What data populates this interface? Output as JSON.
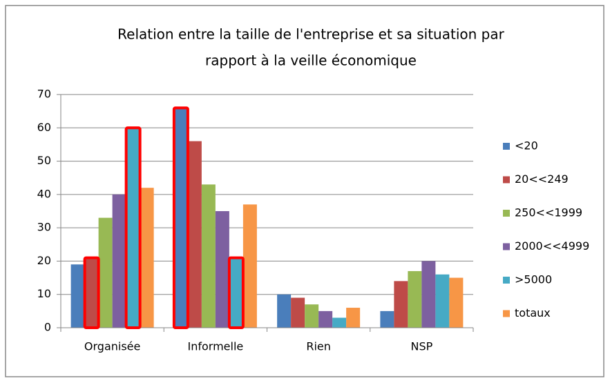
{
  "chart_data": {
    "type": "bar",
    "title": [
      "Relation entre la taille de l'entreprise et sa situation par",
      "rapport à la veille économique"
    ],
    "categories": [
      "Organisée",
      "Informelle",
      "Rien",
      "NSP"
    ],
    "series": [
      {
        "name": "<20",
        "color": "#4a7ebb",
        "values": [
          19,
          66,
          10,
          5
        ]
      },
      {
        "name": "20<<249",
        "color": "#be4b48",
        "values": [
          21,
          56,
          9,
          14
        ]
      },
      {
        "name": "250<<1999",
        "color": "#98b954",
        "values": [
          33,
          43,
          7,
          17
        ]
      },
      {
        "name": "2000<<4999",
        "color": "#7d60a0",
        "values": [
          40,
          35,
          5,
          20
        ]
      },
      {
        "name": ">5000",
        "color": "#46aac5",
        "values": [
          60,
          21,
          3,
          16
        ]
      },
      {
        "name": "totaux",
        "color": "#f79646",
        "values": [
          42,
          37,
          6,
          15
        ]
      }
    ],
    "highlight_color": "#ff0000",
    "highlights": [
      {
        "series": "20<<249",
        "category": "Organisée"
      },
      {
        "series": ">5000",
        "category": "Organisée"
      },
      {
        "series": "<20",
        "category": "Informelle"
      },
      {
        "series": ">5000",
        "category": "Informelle"
      }
    ],
    "ylim": [
      0,
      70
    ],
    "yticks": [
      0,
      10,
      20,
      30,
      40,
      50,
      60,
      70
    ],
    "grid": true,
    "legend": "right"
  }
}
